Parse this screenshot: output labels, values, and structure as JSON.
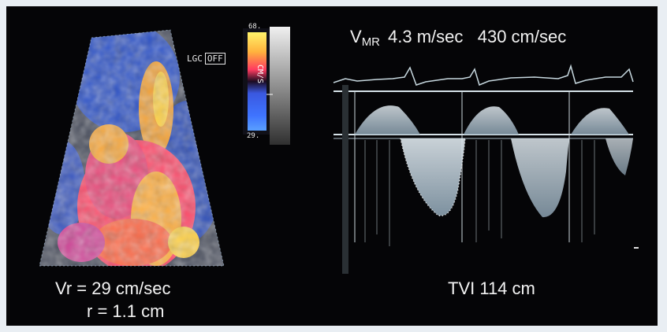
{
  "color_doppler": {
    "lgc_label": "LGC",
    "lgc_state": "OFF",
    "scale_max": "68.",
    "scale_min": "29.",
    "scale_unit": "CM/S",
    "colors": {
      "forward": "#ff4a5e",
      "aliased": "#f6b03a",
      "reverse": "#2d50c8"
    }
  },
  "spectral_doppler": {
    "header_symbol": "V",
    "header_subscript": "MR",
    "header_values": "4.3 m/sec   430 cm/sec"
  },
  "captions": {
    "vr": "Vr = 29 cm/sec",
    "r": "r = 1.1 cm",
    "tvi": "TVI 114 cm"
  }
}
